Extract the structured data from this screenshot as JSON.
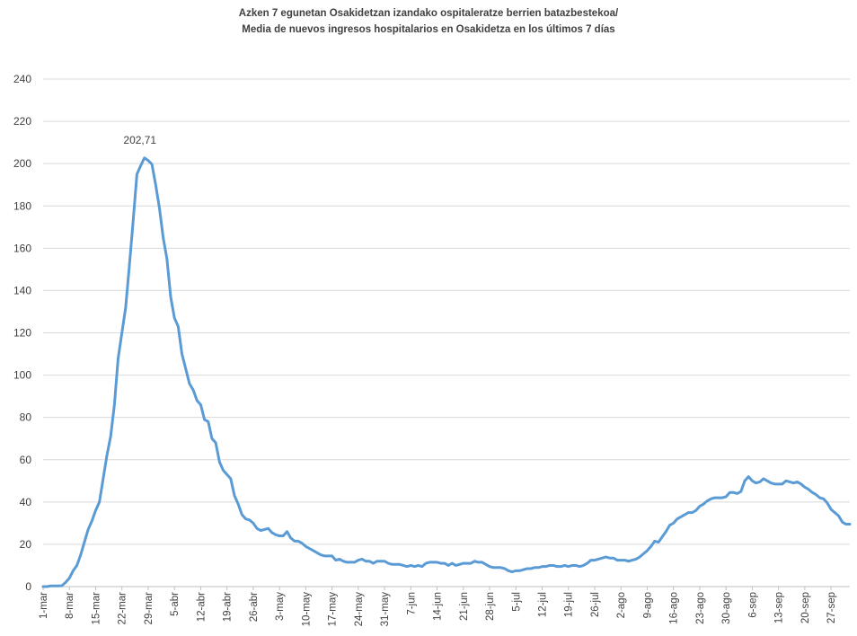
{
  "chart_data": {
    "type": "line",
    "title_lines": [
      "Azken 7 egunetan Osakidetzan izandako ospitaleratze berrien batazbestekoa/",
      "Media de nuevos ingresos hospitalarios en Osakidetza en los últimos 7 días"
    ],
    "xlabel": "",
    "ylabel": "",
    "ylim": [
      0,
      240
    ],
    "yticks": [
      0,
      20,
      40,
      60,
      80,
      100,
      120,
      140,
      160,
      180,
      200,
      220,
      240
    ],
    "grid": "horizontal",
    "legend": "none",
    "x_tick_labels": [
      "1-mar",
      "8-mar",
      "15-mar",
      "22-mar",
      "29-mar",
      "5-abr",
      "12-abr",
      "19-abr",
      "26-abr",
      "3-may",
      "10-may",
      "17-may",
      "24-may",
      "31-may",
      "7-jun",
      "14-jun",
      "21-jun",
      "28-jun",
      "5-jul",
      "12-jul",
      "19-jul",
      "26-jul",
      "2-ago",
      "9-ago",
      "16-ago",
      "23-ago",
      "30-ago",
      "6-sep",
      "13-sep",
      "20-sep",
      "27-sep"
    ],
    "x_start": "1-mar",
    "annotations": [
      {
        "day_index": 27,
        "value": 202.71,
        "text": "202,71"
      }
    ],
    "color": "#5b9bd5",
    "series": [
      {
        "values": [
          0,
          0,
          0.3,
          0.3,
          0.3,
          0.4,
          2,
          4,
          7.5,
          10,
          15,
          21,
          27,
          31,
          36,
          40,
          51,
          62,
          71,
          86,
          108,
          120,
          132,
          152,
          173,
          195,
          199,
          202.71,
          201.5,
          199.7,
          190,
          179,
          165,
          155,
          137,
          127,
          123,
          110,
          103,
          96,
          93,
          88,
          86,
          79,
          78,
          70,
          68,
          59,
          55,
          53,
          51,
          43,
          39,
          34,
          32,
          31.5,
          30,
          27.5,
          26.5,
          27,
          27.5,
          25.5,
          24.5,
          24,
          24,
          26,
          23,
          21.5,
          21.5,
          20.5,
          19,
          18,
          17,
          16,
          15,
          14.5,
          14.5,
          14.5,
          12.5,
          13,
          12,
          11.5,
          11.5,
          11.5,
          12.5,
          13,
          12,
          12,
          11,
          12,
          12,
          12,
          11,
          10.5,
          10.5,
          10.5,
          10,
          9.5,
          10,
          9.5,
          10,
          9.5,
          11,
          11.5,
          11.5,
          11.5,
          11,
          11,
          10,
          11,
          10,
          10.5,
          11,
          11,
          11,
          12,
          11.5,
          11.5,
          10.5,
          9.5,
          9,
          9,
          9,
          8.5,
          7.5,
          7,
          7.5,
          7.5,
          8,
          8.5,
          8.5,
          9,
          9,
          9.5,
          9.5,
          10,
          10,
          9.5,
          9.5,
          10,
          9.5,
          10,
          10,
          9.5,
          10,
          11,
          12.5,
          12.5,
          13,
          13.5,
          14,
          13.5,
          13.5,
          12.5,
          12.5,
          12.5,
          12,
          12.5,
          13,
          14,
          15.5,
          17,
          19,
          21.5,
          21,
          23.5,
          26,
          29,
          30,
          32,
          33,
          34,
          35,
          35,
          36,
          38,
          39,
          40.5,
          41.5,
          42,
          42,
          42,
          42.5,
          44.5,
          44.5,
          44,
          45,
          50,
          52,
          50,
          49,
          49.5,
          51,
          50,
          49,
          48.5,
          48.5,
          48.5,
          50,
          49.5,
          49,
          49.5,
          48.5,
          47,
          46,
          44.5,
          43.5,
          42,
          41.5,
          39.5,
          36.5,
          35,
          33.5,
          30.5,
          29.5,
          29.5
        ]
      }
    ]
  }
}
